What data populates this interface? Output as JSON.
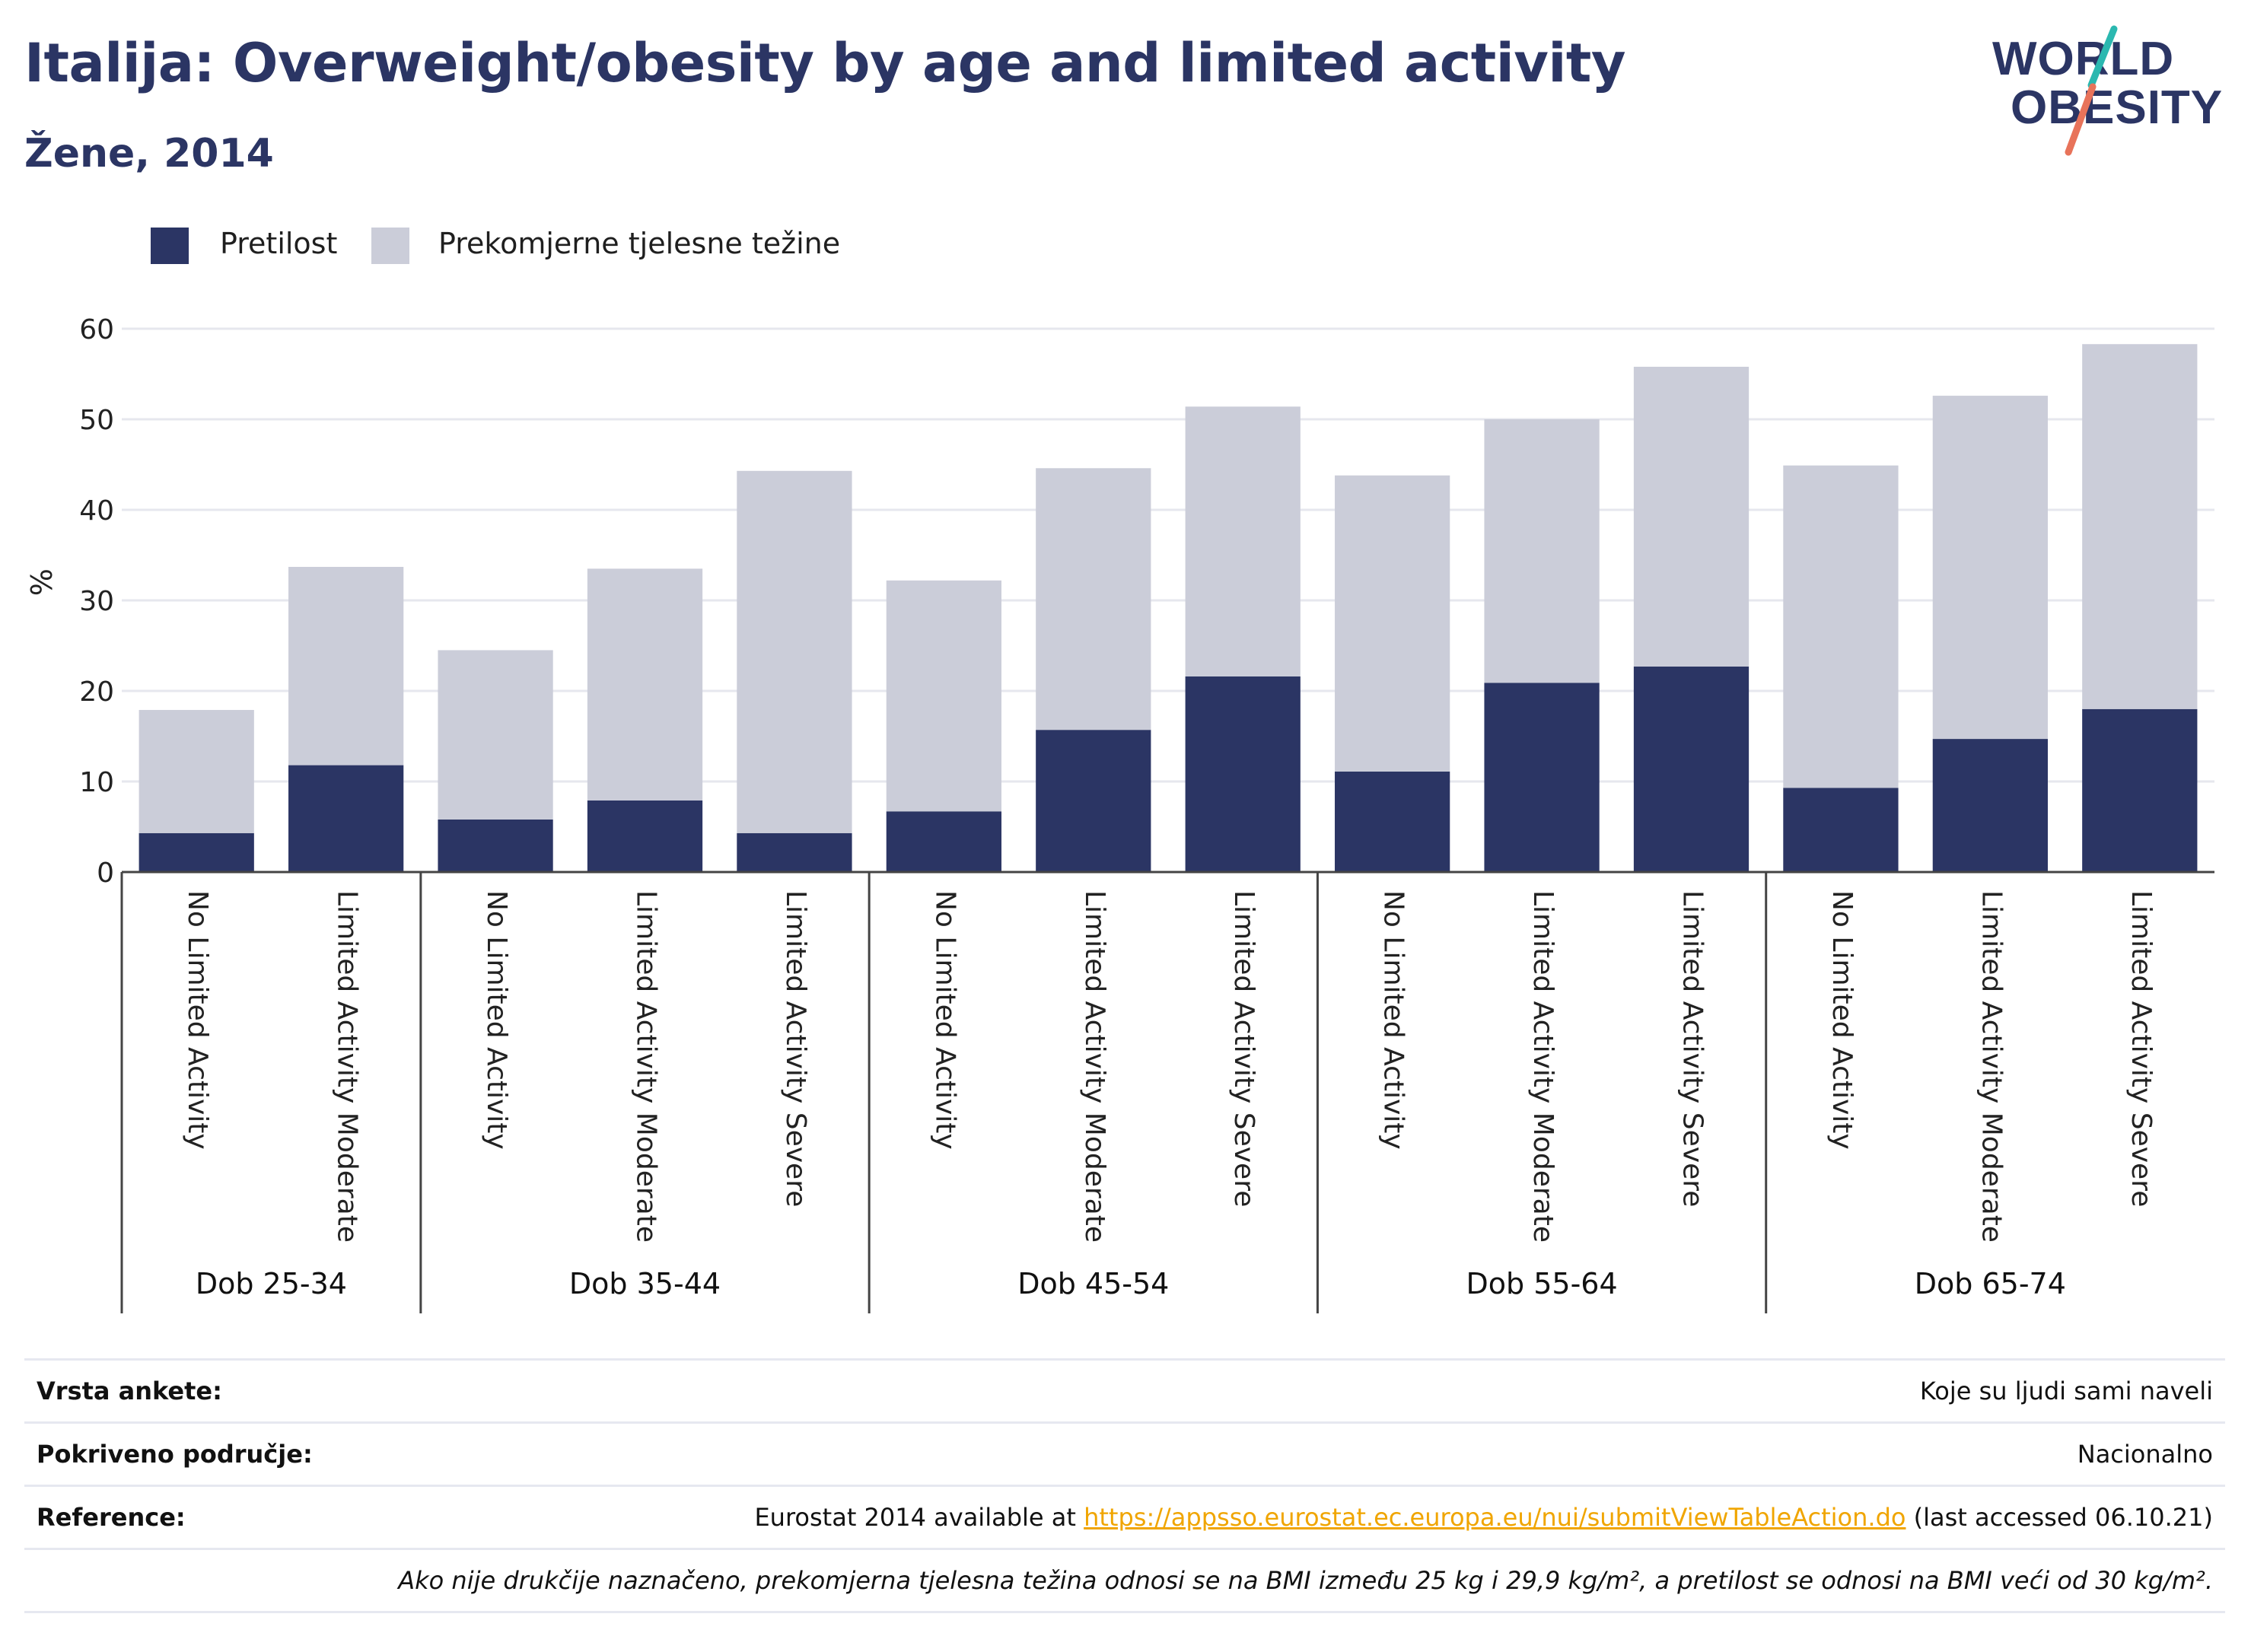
{
  "header": {
    "title": "Italija: Overweight/obesity by age and limited activity",
    "subtitle": "Žene, 2014"
  },
  "logo": {
    "line1": "WORLD",
    "line2": "OBESITY",
    "colors": {
      "text": "#2b3564",
      "slash_top": "#2bb8b0",
      "slash_bottom": "#e8735a"
    }
  },
  "legend": [
    {
      "label": "Pretilost",
      "color": "#2b3564"
    },
    {
      "label": "Prekomjerne tjelesne težine",
      "color": "#cbcdd9"
    }
  ],
  "chart_data": {
    "type": "bar",
    "stacked": true,
    "ylabel": "%",
    "xlabel": "",
    "ylim": [
      0,
      60
    ],
    "yticks": [
      0,
      10,
      20,
      30,
      40,
      50,
      60
    ],
    "grid": true,
    "legend_position": "top-left",
    "groups": [
      {
        "label": "Dob 25-34",
        "categories": [
          "No Limited Activity",
          "Limited Activity Moderate"
        ]
      },
      {
        "label": "Dob 35-44",
        "categories": [
          "No Limited Activity",
          "Limited Activity Moderate",
          "Limited Activity Severe"
        ]
      },
      {
        "label": "Dob 45-54",
        "categories": [
          "No Limited Activity",
          "Limited Activity Moderate",
          "Limited Activity Severe"
        ]
      },
      {
        "label": "Dob 55-64",
        "categories": [
          "No Limited Activity",
          "Limited Activity Moderate",
          "Limited Activity Severe"
        ]
      },
      {
        "label": "Dob 65-74",
        "categories": [
          "No Limited Activity",
          "Limited Activity Moderate",
          "Limited Activity Severe"
        ]
      }
    ],
    "series": [
      {
        "name": "Pretilost",
        "color": "#2b3564",
        "values": [
          4.3,
          11.8,
          5.8,
          7.9,
          4.3,
          6.7,
          15.7,
          21.6,
          11.1,
          20.9,
          22.7,
          9.3,
          14.7,
          18.0
        ]
      },
      {
        "name": "Prekomjerne tjelesne težine",
        "color": "#cbcdd9",
        "values": [
          13.6,
          21.9,
          18.7,
          25.6,
          40.0,
          25.5,
          28.9,
          29.8,
          32.7,
          29.1,
          33.1,
          35.6,
          37.9,
          40.3
        ]
      }
    ]
  },
  "info": {
    "survey_label": "Vrsta ankete:",
    "survey_value": "Koje su ljudi sami naveli",
    "coverage_label": "Pokriveno područje:",
    "coverage_value": "Nacionalno",
    "reference_label": "Reference:",
    "reference_prefix": "Eurostat 2014 available at ",
    "reference_link": "https://appsso.eurostat.ec.europa.eu/nui/submitViewTableAction.do",
    "reference_suffix": " (last accessed 06.10.21)",
    "note": "Ako nije drukčije naznačeno, prekomjerna tjelesna težina odnosi se na BMI između 25 kg i 29,9 kg/m², a pretilost se odnosi na BMI veći od 30 kg/m²."
  }
}
